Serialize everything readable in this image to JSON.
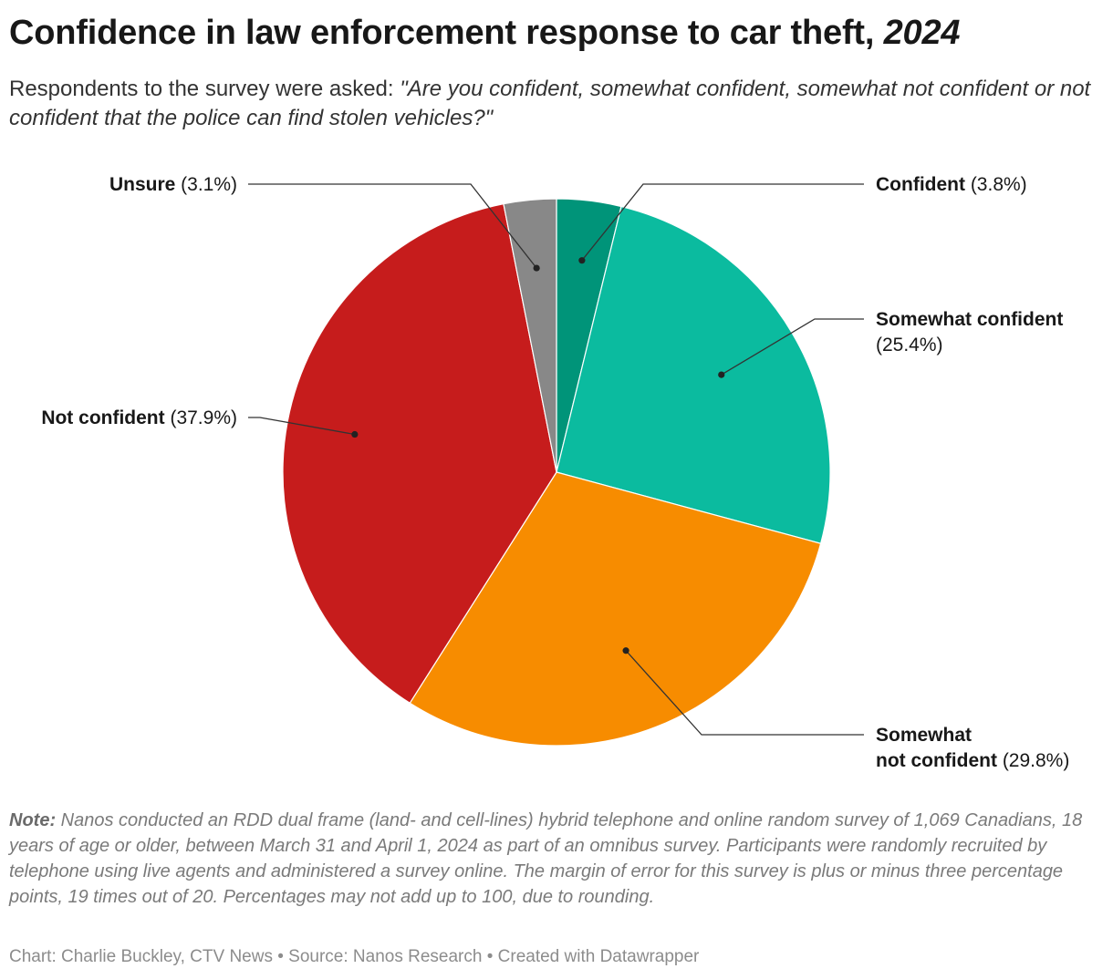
{
  "title": "Confidence in law enforcement response to car theft,",
  "title_year": "2024",
  "subtitle_prefix": "Respondents to the survey were asked:",
  "subtitle_question": "\"Are you confident, somewhat confident, somewhat not confident or not confident that the police can find stolen vehicles?\"",
  "note_label": "Note:",
  "note_text": "Nanos conducted an RDD dual frame (land- and cell-lines) hybrid telephone and online random survey of 1,069 Canadians, 18 years of age or older, between March 31 and April 1, 2024 as part of an omnibus survey. Participants were randomly recruited by telephone using live agents and administered a survey online. The margin of error for this survey is plus or minus three percentage points, 19 times out of 20. Percentages may not add up to 100, due to rounding.",
  "footer": "Chart: Charlie Buckley, CTV News • Source: Nanos Research • Created with Datawrapper",
  "chart_data": {
    "type": "pie",
    "start": "12 o'clock, clockwise",
    "slices": [
      {
        "name": "Confident",
        "value": 3.8,
        "label_value": "(3.8%)",
        "color": "#009479"
      },
      {
        "name": "Somewhat confident",
        "value": 25.4,
        "label_value": "(25.4%)",
        "color": "#0bbb9f"
      },
      {
        "name": "Somewhat not confident",
        "value": 29.8,
        "label_value": "(29.8%)",
        "color": "#f78c00"
      },
      {
        "name": "Not confident",
        "value": 37.9,
        "label_value": "(37.9%)",
        "color": "#c61c1c"
      },
      {
        "name": "Unsure",
        "value": 3.1,
        "label_value": "(3.1%)",
        "color": "#888888"
      }
    ]
  }
}
